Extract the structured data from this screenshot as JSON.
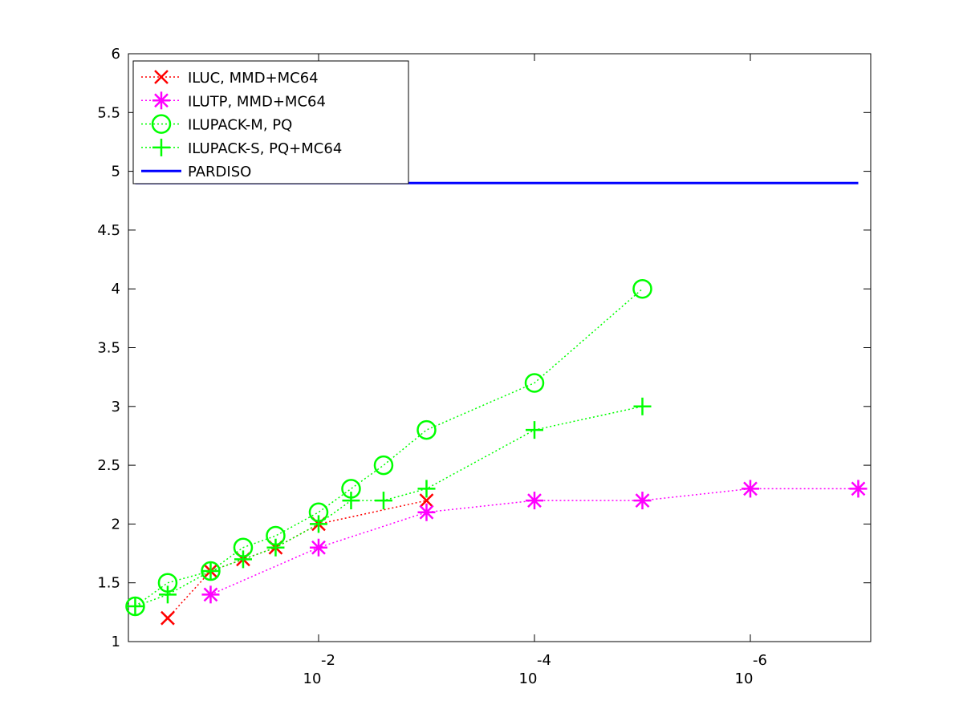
{
  "chart_data": {
    "type": "line",
    "xscale": "log",
    "xlim": [
      0.578,
      7.67e-08
    ],
    "xticks": [
      {
        "value": 0.01,
        "label": "10",
        "exponent": "-2"
      },
      {
        "value": 0.0001,
        "label": "10",
        "exponent": "-4"
      },
      {
        "value": 1e-06,
        "label": "10",
        "exponent": "-6"
      }
    ],
    "ylim": [
      1,
      6
    ],
    "yticks": [
      1,
      1.5,
      2,
      2.5,
      3,
      3.5,
      4,
      4.5,
      5,
      5.5,
      6
    ],
    "legend": "upper left",
    "series": [
      {
        "name": "ILUC, MMD+MC64",
        "color": "#ff0000",
        "marker": "x",
        "linestyle": "dotted",
        "x": [
          0.25,
          0.1,
          0.05,
          0.025,
          0.01,
          0.001
        ],
        "values": [
          1.2,
          1.6,
          1.7,
          1.8,
          2.0,
          2.2
        ]
      },
      {
        "name": "ILUTP, MMD+MC64",
        "color": "#ff00ff",
        "marker": "star",
        "linestyle": "dotted",
        "x": [
          0.1,
          0.01,
          0.001,
          0.0001,
          1e-05,
          1e-06,
          1e-07
        ],
        "values": [
          1.4,
          1.8,
          2.1,
          2.2,
          2.2,
          2.3,
          2.3
        ]
      },
      {
        "name": "ILUPACK-M, PQ",
        "color": "#00ff00",
        "marker": "circle",
        "linestyle": "dotted",
        "x": [
          0.5,
          0.25,
          0.1,
          0.05,
          0.025,
          0.01,
          0.005,
          0.0025,
          0.001,
          0.0001,
          1e-05
        ],
        "values": [
          1.3,
          1.5,
          1.6,
          1.8,
          1.9,
          2.1,
          2.3,
          2.5,
          2.8,
          3.2,
          4.0
        ]
      },
      {
        "name": "ILUPACK-S, PQ+MC64",
        "color": "#00ff00",
        "marker": "plus",
        "linestyle": "dotted",
        "x": [
          0.5,
          0.25,
          0.1,
          0.05,
          0.025,
          0.01,
          0.005,
          0.0025,
          0.001,
          0.0001,
          1e-05
        ],
        "values": [
          1.3,
          1.4,
          1.6,
          1.7,
          1.8,
          2.0,
          2.2,
          2.2,
          2.3,
          2.8,
          3.0
        ]
      },
      {
        "name": "PARDISO",
        "color": "#0000ff",
        "marker": "none",
        "linestyle": "solid",
        "x": [
          0.5,
          1e-07
        ],
        "values": [
          4.9,
          4.9
        ]
      }
    ]
  }
}
